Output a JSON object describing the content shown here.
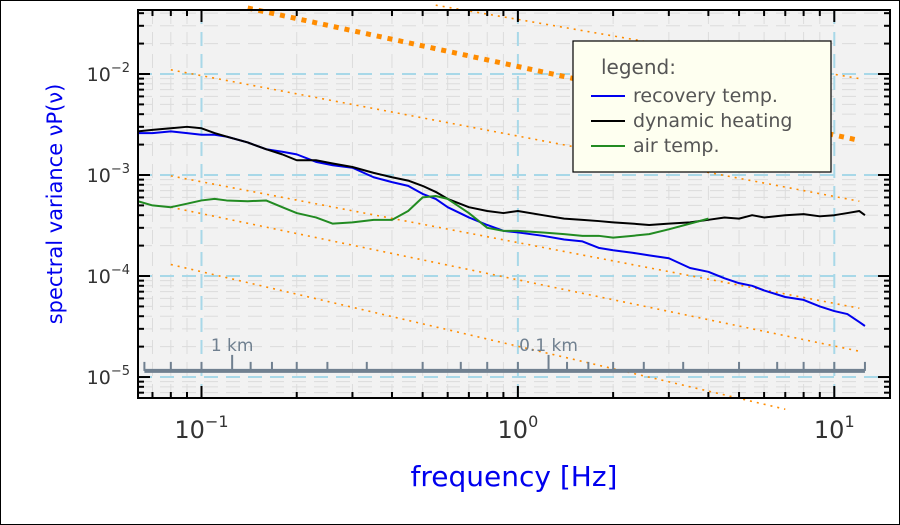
{
  "chart_data": {
    "type": "line",
    "xlabel": "frequency [Hz]",
    "ylabel": "spectral variance νP(ν)",
    "xscale": "log",
    "yscale": "log",
    "xlim": [
      0.063,
      15.0
    ],
    "ylim": [
      6.2e-06,
      0.043
    ],
    "x_ticks": [
      {
        "value": 0.1,
        "base": "10",
        "exp": "−1"
      },
      {
        "value": 1,
        "base": "10",
        "exp": "0"
      },
      {
        "value": 10,
        "base": "10",
        "exp": "1"
      }
    ],
    "y_ticks": [
      {
        "value": 1e-05,
        "base": "10",
        "exp": "−5"
      },
      {
        "value": 0.0001,
        "base": "10",
        "exp": "−4"
      },
      {
        "value": 0.001,
        "base": "10",
        "exp": "−3"
      },
      {
        "value": 0.01,
        "base": "10",
        "exp": "−2"
      }
    ],
    "grid": true,
    "legend": {
      "title": "legend:",
      "position": "top-right"
    },
    "colors": {
      "recovery": "#0000ee",
      "dynamic": "#000000",
      "air": "#228b22",
      "reference": "#ff8c00",
      "grid": "#a8d8e8",
      "ylabel": "#0000ee",
      "xlabel": "#0000ee",
      "distance_scale": "#708090",
      "legend_text": "#555555",
      "plot_bg": "#f2f2f2",
      "legend_bg": "#fefff0"
    },
    "series": [
      {
        "name": "recovery temp.",
        "color": "#0000ee",
        "x": [
          0.063,
          0.07,
          0.08,
          0.09,
          0.1,
          0.11,
          0.12,
          0.14,
          0.16,
          0.18,
          0.2,
          0.23,
          0.26,
          0.3,
          0.35,
          0.4,
          0.45,
          0.5,
          0.55,
          0.6,
          0.7,
          0.8,
          0.9,
          1.0,
          1.2,
          1.4,
          1.6,
          1.8,
          2.0,
          2.3,
          2.6,
          3.0,
          3.5,
          4.0,
          4.5,
          5.0,
          5.5,
          6.0,
          7.0,
          8.0,
          9.0,
          10.0,
          11.0,
          12.0,
          12.5
        ],
        "y": [
          0.0026,
          0.0026,
          0.0027,
          0.0026,
          0.0025,
          0.0025,
          0.0024,
          0.0021,
          0.0018,
          0.0017,
          0.0016,
          0.00135,
          0.00125,
          0.00118,
          0.00095,
          0.00085,
          0.00078,
          0.00065,
          0.00058,
          0.00048,
          0.00038,
          0.00032,
          0.00028,
          0.00027,
          0.00025,
          0.00023,
          0.00022,
          0.00019,
          0.00018,
          0.00017,
          0.00016,
          0.00015,
          0.00012,
          0.00011,
          9.5e-05,
          8.5e-05,
          8e-05,
          7.2e-05,
          6.2e-05,
          5.8e-05,
          5e-05,
          4.5e-05,
          4.2e-05,
          3.5e-05,
          3.2e-05
        ]
      },
      {
        "name": "dynamic heating",
        "color": "#000000",
        "x": [
          0.063,
          0.07,
          0.08,
          0.09,
          0.1,
          0.11,
          0.12,
          0.14,
          0.16,
          0.18,
          0.2,
          0.23,
          0.26,
          0.3,
          0.35,
          0.4,
          0.45,
          0.5,
          0.55,
          0.6,
          0.7,
          0.8,
          0.9,
          1.0,
          1.2,
          1.4,
          1.6,
          1.8,
          2.0,
          2.3,
          2.6,
          3.0,
          3.5,
          4.0,
          4.5,
          5.0,
          5.5,
          6.0,
          7.0,
          8.0,
          9.0,
          10.0,
          11.0,
          12.0,
          12.5
        ],
        "y": [
          0.0027,
          0.0028,
          0.0029,
          0.003,
          0.0029,
          0.0026,
          0.0024,
          0.0021,
          0.0018,
          0.0016,
          0.0014,
          0.0014,
          0.0013,
          0.0012,
          0.00105,
          0.00095,
          0.00088,
          0.00078,
          0.00068,
          0.00058,
          0.00048,
          0.00044,
          0.00042,
          0.00044,
          0.0004,
          0.00037,
          0.00036,
          0.00035,
          0.00034,
          0.00033,
          0.00032,
          0.00033,
          0.00034,
          0.00036,
          0.00038,
          0.00037,
          0.0004,
          0.00038,
          0.0004,
          0.00041,
          0.00039,
          0.0004,
          0.00042,
          0.00044,
          0.0004
        ]
      },
      {
        "name": "air temp.",
        "color": "#228b22",
        "x": [
          0.063,
          0.07,
          0.08,
          0.09,
          0.1,
          0.11,
          0.12,
          0.14,
          0.16,
          0.18,
          0.2,
          0.23,
          0.26,
          0.3,
          0.35,
          0.4,
          0.45,
          0.5,
          0.55,
          0.6,
          0.7,
          0.8,
          0.9,
          1.0,
          1.2,
          1.4,
          1.6,
          1.8,
          2.0,
          2.3,
          2.6,
          3.0,
          3.5,
          4.0
        ],
        "y": [
          0.00055,
          0.0005,
          0.00048,
          0.00052,
          0.00056,
          0.00058,
          0.00056,
          0.00055,
          0.00056,
          0.00048,
          0.00042,
          0.00038,
          0.00033,
          0.00034,
          0.00036,
          0.00036,
          0.00044,
          0.0006,
          0.00062,
          0.00058,
          0.00042,
          0.0003,
          0.00028,
          0.00028,
          0.00027,
          0.00026,
          0.00025,
          0.00025,
          0.00024,
          0.00025,
          0.00026,
          0.00029,
          0.00033,
          0.00037
        ]
      }
    ],
    "reference_lines": [
      {
        "style": "thick-dotted",
        "x": [
          0.14,
          12.0
        ],
        "y": [
          0.045,
          0.0022
        ]
      },
      {
        "style": "dotted",
        "x": [
          0.55,
          12.0
        ],
        "y": [
          0.048,
          0.009
        ]
      },
      {
        "style": "dotted",
        "x": [
          0.08,
          12.0
        ],
        "y": [
          0.011,
          0.00055
        ]
      },
      {
        "style": "dotted",
        "x": [
          0.08,
          12.0
        ],
        "y": [
          0.00098,
          4.8e-05
        ]
      },
      {
        "style": "dotted",
        "x": [
          0.08,
          12.0
        ],
        "y": [
          0.00048,
          1.8e-05
        ]
      },
      {
        "style": "dotted",
        "x": [
          0.08,
          7.0
        ],
        "y": [
          0.00013,
          4.8e-06
        ]
      }
    ],
    "distance_scale": {
      "y": 1.15e-05,
      "ticks_x": [
        0.066,
        0.08,
        0.1,
        0.125,
        0.143,
        0.167,
        0.2,
        0.25,
        0.333,
        0.5,
        0.66,
        0.8,
        1.0,
        1.25,
        1.43,
        1.67,
        2.0,
        2.5,
        3.33,
        5.0,
        6.6,
        8.0,
        10.0,
        12.5
      ],
      "major_x": [
        0.125,
        1.25
      ],
      "labels": [
        {
          "text": "1 km",
          "x": 0.125
        },
        {
          "text": "0.1 km",
          "x": 1.25
        }
      ]
    }
  }
}
